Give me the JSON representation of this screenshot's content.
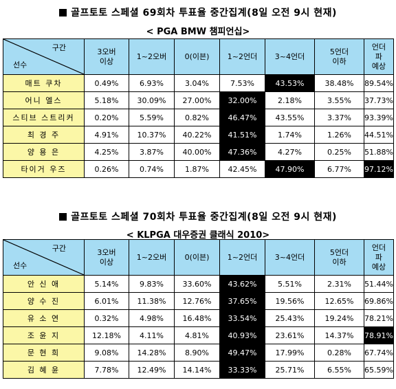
{
  "tables": [
    {
      "title": "골프토토 스페셜 69회차 투표율 중간집계(8일 오전 9시 현재)",
      "subtitle": "< PGA BMW 챔피언십>",
      "corner_top": "구간",
      "corner_bottom": "선수",
      "headers": [
        "3오버\n이상",
        "1~2오버",
        "0(이븐)",
        "1~2언더",
        "3~4언더",
        "5언더\n이하",
        "언더\n파\n예상"
      ],
      "rows": [
        {
          "name": "매트 쿠차",
          "values": [
            "0.49%",
            "6.93%",
            "3.04%",
            "7.53%",
            "43.53%",
            "38.48%",
            "89.54%"
          ],
          "highlight": [
            4
          ]
        },
        {
          "name": "어니 엘스",
          "values": [
            "5.18%",
            "30.09%",
            "27.00%",
            "32.00%",
            "2.18%",
            "3.55%",
            "37.73%"
          ],
          "highlight": [
            3
          ]
        },
        {
          "name": "스티브 스트리커",
          "values": [
            "0.20%",
            "5.59%",
            "0.82%",
            "46.47%",
            "43.55%",
            "3.37%",
            "93.39%"
          ],
          "highlight": [
            3
          ]
        },
        {
          "name": "최 경 주",
          "values": [
            "4.91%",
            "10.37%",
            "40.22%",
            "41.51%",
            "1.74%",
            "1.26%",
            "44.51%"
          ],
          "highlight": [
            3
          ]
        },
        {
          "name": "양 용 은",
          "values": [
            "4.25%",
            "3.87%",
            "40.00%",
            "47.36%",
            "4.27%",
            "0.25%",
            "51.88%"
          ],
          "highlight": [
            3
          ]
        },
        {
          "name": "타이거 우즈",
          "values": [
            "0.26%",
            "0.74%",
            "1.87%",
            "42.45%",
            "47.90%",
            "6.77%",
            "97.12%"
          ],
          "highlight": [
            4,
            6
          ]
        }
      ]
    },
    {
      "title": "골프토토 스페셜 70회차 투표율 중간집계(8일 오전 9시 현재)",
      "subtitle": "< KLPGA 대우증권 클래식 2010>",
      "corner_top": "구간",
      "corner_bottom": "선수",
      "headers": [
        "3오버\n이상",
        "1~2오버",
        "0(이븐)",
        "1~2언더",
        "3~4언더",
        "5언더\n이하",
        "언더\n파\n예상"
      ],
      "rows": [
        {
          "name": "안 신 애",
          "values": [
            "5.14%",
            "9.83%",
            "33.60%",
            "43.62%",
            "5.51%",
            "2.31%",
            "51.44%"
          ],
          "highlight": [
            3
          ]
        },
        {
          "name": "양 수 진",
          "values": [
            "6.01%",
            "11.38%",
            "12.76%",
            "37.65%",
            "19.56%",
            "12.65%",
            "69.86%"
          ],
          "highlight": [
            3
          ]
        },
        {
          "name": "유 소 연",
          "values": [
            "0.32%",
            "4.98%",
            "16.48%",
            "33.54%",
            "25.43%",
            "19.24%",
            "78.21%"
          ],
          "highlight": [
            3
          ]
        },
        {
          "name": "조 윤 지",
          "values": [
            "12.18%",
            "4.11%",
            "4.81%",
            "40.93%",
            "23.61%",
            "14.37%",
            "78.91%"
          ],
          "highlight": [
            3,
            6
          ]
        },
        {
          "name": "문 현 희",
          "values": [
            "9.08%",
            "14.28%",
            "8.90%",
            "49.47%",
            "17.99%",
            "0.28%",
            "67.74%"
          ],
          "highlight": [
            3
          ]
        },
        {
          "name": "김 혜 윤",
          "values": [
            "7.78%",
            "12.49%",
            "14.14%",
            "33.33%",
            "25.71%",
            "6.55%",
            "65.59%"
          ],
          "highlight": [
            3
          ]
        }
      ]
    }
  ]
}
